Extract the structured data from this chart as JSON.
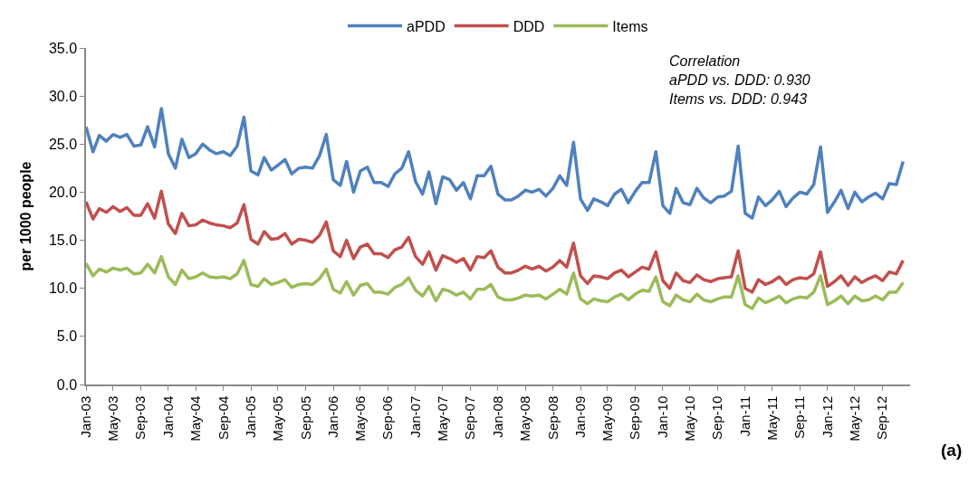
{
  "chart_data": {
    "type": "line",
    "ylabel": "per 1000 people",
    "x": [
      "2003-01",
      "2003-02",
      "2003-03",
      "2003-04",
      "2003-05",
      "2003-06",
      "2003-07",
      "2003-08",
      "2003-09",
      "2003-10",
      "2003-11",
      "2003-12",
      "2004-01",
      "2004-02",
      "2004-03",
      "2004-04",
      "2004-05",
      "2004-06",
      "2004-07",
      "2004-08",
      "2004-09",
      "2004-10",
      "2004-11",
      "2004-12",
      "2005-01",
      "2005-02",
      "2005-03",
      "2005-04",
      "2005-05",
      "2005-06",
      "2005-07",
      "2005-08",
      "2005-09",
      "2005-10",
      "2005-11",
      "2005-12",
      "2006-01",
      "2006-02",
      "2006-03",
      "2006-04",
      "2006-05",
      "2006-06",
      "2006-07",
      "2006-08",
      "2006-09",
      "2006-10",
      "2006-11",
      "2006-12",
      "2007-01",
      "2007-02",
      "2007-03",
      "2007-04",
      "2007-05",
      "2007-06",
      "2007-07",
      "2007-08",
      "2007-09",
      "2007-10",
      "2007-11",
      "2007-12",
      "2008-01",
      "2008-02",
      "2008-03",
      "2008-04",
      "2008-05",
      "2008-06",
      "2008-07",
      "2008-08",
      "2008-09",
      "2008-10",
      "2008-11",
      "2008-12",
      "2009-01",
      "2009-02",
      "2009-03",
      "2009-04",
      "2009-05",
      "2009-06",
      "2009-07",
      "2009-08",
      "2009-09",
      "2009-10",
      "2009-11",
      "2009-12",
      "2010-01",
      "2010-02",
      "2010-03",
      "2010-04",
      "2010-05",
      "2010-06",
      "2010-07",
      "2010-08",
      "2010-09",
      "2010-10",
      "2010-11",
      "2010-12",
      "2011-01",
      "2011-02",
      "2011-03",
      "2011-04",
      "2011-05",
      "2011-06",
      "2011-07",
      "2011-08",
      "2011-09",
      "2011-10",
      "2011-11",
      "2011-12",
      "2012-01",
      "2012-02",
      "2012-03",
      "2012-04",
      "2012-05",
      "2012-06",
      "2012-07",
      "2012-08",
      "2012-09",
      "2012-10",
      "2012-11",
      "2012-12"
    ],
    "xlim": [
      "2003-01",
      "2013-01"
    ],
    "xticks": [
      {
        "value": "2003-01",
        "label": "Jan-03"
      },
      {
        "value": "2003-05",
        "label": "May-03"
      },
      {
        "value": "2003-09",
        "label": "Sep-03"
      },
      {
        "value": "2004-01",
        "label": "Jan-04"
      },
      {
        "value": "2004-05",
        "label": "May-04"
      },
      {
        "value": "2004-09",
        "label": "Sep-04"
      },
      {
        "value": "2005-01",
        "label": "Jan-05"
      },
      {
        "value": "2005-05",
        "label": "May-05"
      },
      {
        "value": "2005-09",
        "label": "Sep-05"
      },
      {
        "value": "2006-01",
        "label": "Jan-06"
      },
      {
        "value": "2006-05",
        "label": "May-06"
      },
      {
        "value": "2006-09",
        "label": "Sep-06"
      },
      {
        "value": "2007-01",
        "label": "Jan-07"
      },
      {
        "value": "2007-05",
        "label": "May-07"
      },
      {
        "value": "2007-09",
        "label": "Sep-07"
      },
      {
        "value": "2008-01",
        "label": "Jan-08"
      },
      {
        "value": "2008-05",
        "label": "May-08"
      },
      {
        "value": "2008-09",
        "label": "Sep-08"
      },
      {
        "value": "2009-01",
        "label": "Jan-09"
      },
      {
        "value": "2009-05",
        "label": "May-09"
      },
      {
        "value": "2009-09",
        "label": "Sep-09"
      },
      {
        "value": "2010-01",
        "label": "Jan-10"
      },
      {
        "value": "2010-05",
        "label": "May-10"
      },
      {
        "value": "2010-09",
        "label": "Sep-10"
      },
      {
        "value": "2011-01",
        "label": "Jan-11"
      },
      {
        "value": "2011-05",
        "label": "May-11"
      },
      {
        "value": "2011-09",
        "label": "Sep-11"
      },
      {
        "value": "2012-01",
        "label": "Jan-12"
      },
      {
        "value": "2012-05",
        "label": "May-12"
      },
      {
        "value": "2012-09",
        "label": "Sep-12"
      }
    ],
    "ylim": [
      0,
      35
    ],
    "yticks": [
      {
        "value": 0,
        "label": "0.0"
      },
      {
        "value": 5,
        "label": "5.0"
      },
      {
        "value": 10,
        "label": "10.0"
      },
      {
        "value": 15,
        "label": "15.0"
      },
      {
        "value": 20,
        "label": "20.0"
      },
      {
        "value": 25,
        "label": "25.0"
      },
      {
        "value": 30,
        "label": "30.0"
      },
      {
        "value": 35,
        "label": "35.0"
      }
    ],
    "legend": "top",
    "marker": "none",
    "line_style": "solid",
    "annotations": [
      "Correlation\naPDD vs. DDD: 0.930\nItems vs. DDD: 0.943",
      "(a)"
    ],
    "series": [
      {
        "name": "aPDD",
        "color": "#4f81bd",
        "values": [
          26.8,
          24.2,
          25.9,
          25.3,
          26.0,
          25.7,
          26.0,
          24.8,
          24.9,
          26.8,
          24.7,
          28.7,
          24.0,
          22.5,
          25.5,
          23.6,
          24.0,
          25.0,
          24.4,
          24.0,
          24.2,
          23.8,
          24.8,
          27.8,
          22.2,
          21.8,
          23.6,
          22.3,
          22.8,
          23.4,
          21.9,
          22.5,
          22.6,
          22.5,
          23.8,
          26.0,
          21.3,
          20.7,
          23.2,
          20.0,
          22.2,
          22.6,
          21.0,
          21.0,
          20.6,
          21.9,
          22.5,
          24.2,
          21.1,
          19.8,
          22.1,
          18.8,
          21.6,
          21.3,
          20.2,
          21.0,
          19.3,
          21.7,
          21.7,
          22.7,
          19.8,
          19.2,
          19.2,
          19.6,
          20.2,
          20.0,
          20.3,
          19.6,
          20.4,
          21.7,
          20.7,
          25.2,
          19.3,
          18.1,
          19.3,
          19.0,
          18.6,
          19.8,
          20.3,
          18.9,
          20.1,
          21.0,
          21.0,
          24.2,
          18.6,
          17.8,
          20.4,
          18.9,
          18.7,
          20.4,
          19.4,
          18.9,
          19.5,
          19.6,
          20.1,
          24.8,
          17.8,
          17.3,
          19.5,
          18.6,
          19.2,
          20.1,
          18.5,
          19.4,
          20.0,
          19.8,
          20.8,
          24.7,
          17.9,
          19.0,
          20.2,
          18.3,
          20.0,
          19.0,
          19.5,
          19.9,
          19.3,
          20.9,
          20.8,
          23.2
        ]
      },
      {
        "name": "DDD",
        "color": "#c0504d",
        "values": [
          19.0,
          17.2,
          18.3,
          17.9,
          18.5,
          18.0,
          18.4,
          17.6,
          17.6,
          18.8,
          17.3,
          20.1,
          16.7,
          15.7,
          17.8,
          16.5,
          16.6,
          17.1,
          16.8,
          16.6,
          16.5,
          16.3,
          16.8,
          18.7,
          15.1,
          14.6,
          15.9,
          15.1,
          15.2,
          15.7,
          14.6,
          15.1,
          15.0,
          14.8,
          15.5,
          16.9,
          13.9,
          13.3,
          15.0,
          13.1,
          14.3,
          14.6,
          13.6,
          13.6,
          13.2,
          14.0,
          14.3,
          15.3,
          13.3,
          12.5,
          13.8,
          11.9,
          13.4,
          13.1,
          12.7,
          13.1,
          11.9,
          13.3,
          13.2,
          13.9,
          12.2,
          11.6,
          11.6,
          11.9,
          12.3,
          12.0,
          12.3,
          11.8,
          12.2,
          12.9,
          12.2,
          14.7,
          11.3,
          10.5,
          11.3,
          11.2,
          11.0,
          11.6,
          11.9,
          11.2,
          11.7,
          12.2,
          12.0,
          13.8,
          10.8,
          10.0,
          11.6,
          10.8,
          10.6,
          11.4,
          10.9,
          10.7,
          11.0,
          11.1,
          11.2,
          13.9,
          10.0,
          9.6,
          10.9,
          10.4,
          10.7,
          11.2,
          10.4,
          10.9,
          11.1,
          11.0,
          11.5,
          13.8,
          10.2,
          10.7,
          11.3,
          10.3,
          11.2,
          10.6,
          11.0,
          11.3,
          10.8,
          11.7,
          11.5,
          12.9
        ]
      },
      {
        "name": "Items",
        "color": "#9bbb59",
        "values": [
          12.6,
          11.3,
          12.0,
          11.7,
          12.1,
          11.9,
          12.1,
          11.5,
          11.6,
          12.5,
          11.6,
          13.3,
          11.2,
          10.4,
          11.9,
          11.0,
          11.2,
          11.6,
          11.2,
          11.1,
          11.2,
          11.0,
          11.5,
          12.9,
          10.4,
          10.2,
          11.0,
          10.4,
          10.6,
          10.9,
          10.1,
          10.4,
          10.5,
          10.4,
          11.0,
          12.0,
          9.9,
          9.5,
          10.7,
          9.3,
          10.3,
          10.5,
          9.6,
          9.6,
          9.4,
          10.1,
          10.4,
          11.1,
          9.8,
          9.2,
          10.2,
          8.7,
          9.9,
          9.7,
          9.3,
          9.6,
          8.9,
          9.9,
          9.9,
          10.4,
          9.1,
          8.8,
          8.8,
          9.0,
          9.3,
          9.2,
          9.3,
          8.9,
          9.4,
          9.9,
          9.4,
          11.6,
          8.9,
          8.4,
          8.9,
          8.7,
          8.6,
          9.1,
          9.4,
          8.8,
          9.4,
          9.8,
          9.7,
          11.2,
          8.6,
          8.2,
          9.3,
          8.8,
          8.6,
          9.4,
          8.8,
          8.6,
          8.9,
          9.1,
          9.1,
          11.3,
          8.3,
          7.9,
          9.0,
          8.5,
          8.8,
          9.2,
          8.5,
          8.9,
          9.1,
          9.0,
          9.6,
          11.3,
          8.3,
          8.7,
          9.2,
          8.4,
          9.2,
          8.7,
          8.8,
          9.2,
          8.8,
          9.6,
          9.6,
          10.6
        ]
      }
    ]
  }
}
